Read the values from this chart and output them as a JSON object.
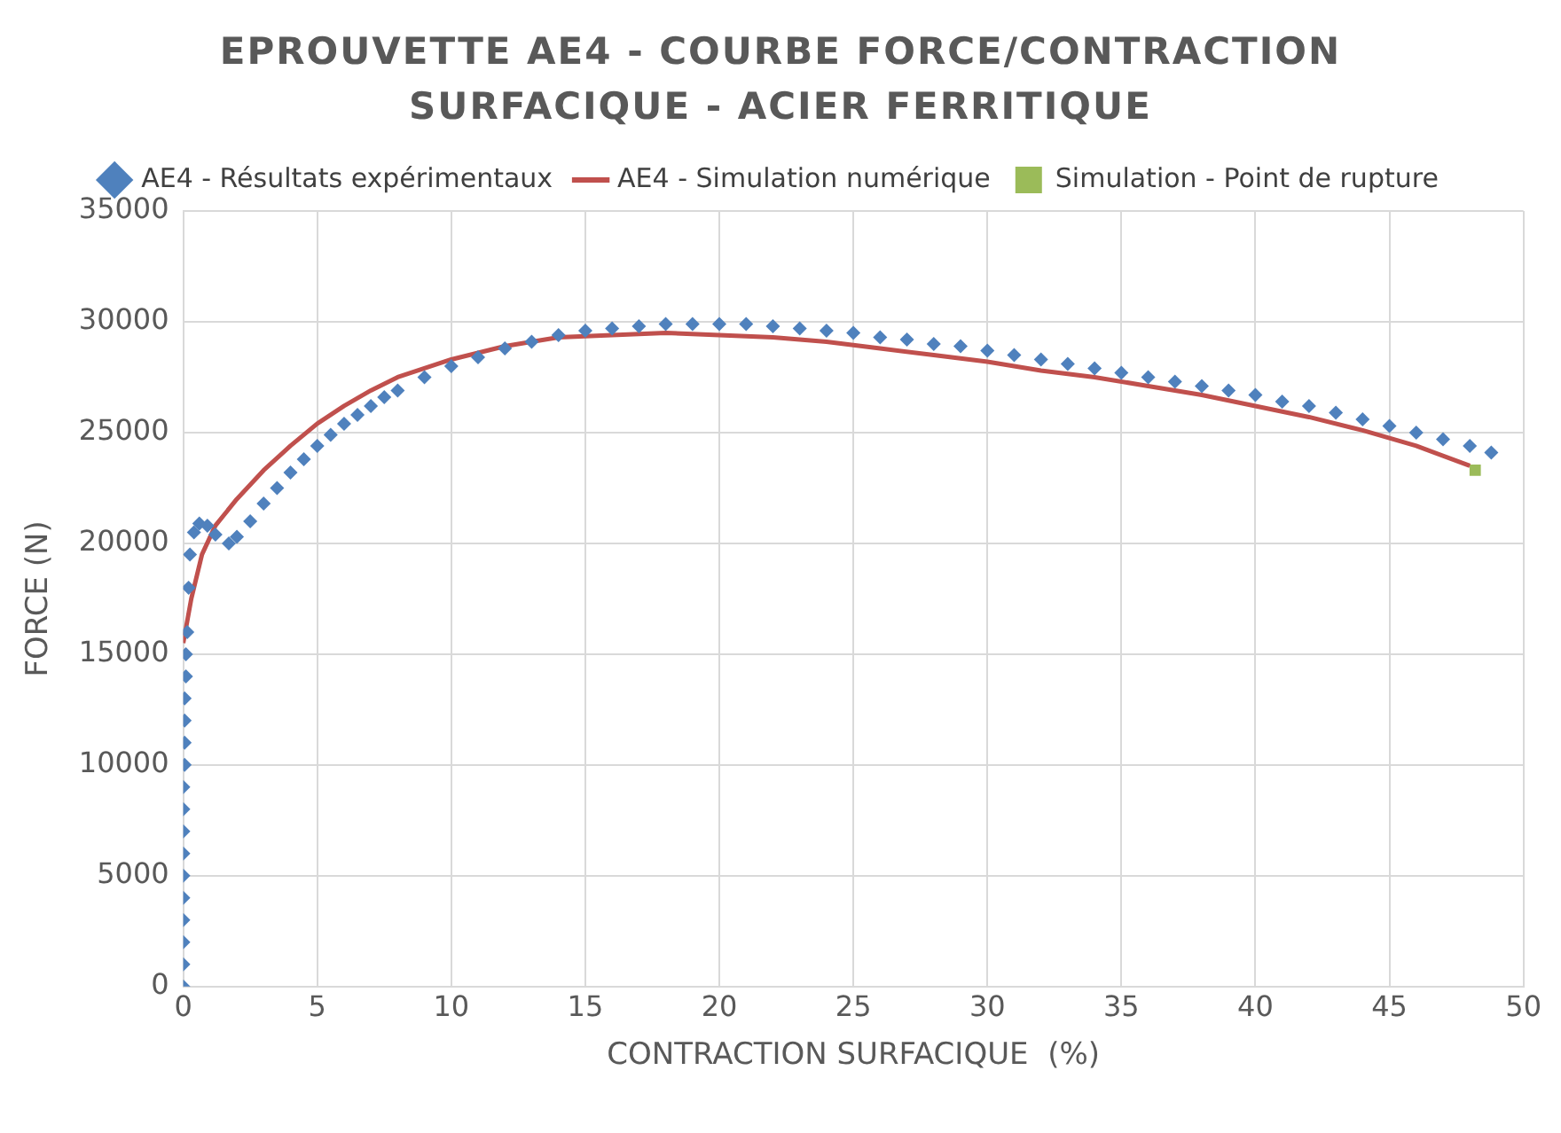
{
  "chart_data": {
    "type": "scatter",
    "title": "EPROUVETTE AE4 - COURBE FORCE/CONTRACTION SURFACIQUE - ACIER FERRITIQUE",
    "xlabel": "CONTRACTION SURFACIQUE  (%)",
    "ylabel": "FORCE (N)",
    "xlim": [
      0,
      50
    ],
    "xticks": [
      0,
      5,
      10,
      15,
      20,
      25,
      30,
      35,
      40,
      45,
      50
    ],
    "ylim": [
      0,
      35000
    ],
    "yticks": [
      0,
      5000,
      10000,
      15000,
      20000,
      25000,
      30000,
      35000
    ],
    "grid": true,
    "legend": "top",
    "series": [
      {
        "name": "AE4 - Résultats expérimentaux",
        "marker": "diamond",
        "color": "#4f81bd",
        "x": [
          0,
          0,
          0,
          0,
          0,
          0,
          0,
          0,
          0,
          0,
          0.05,
          0.05,
          0.05,
          0.05,
          0.1,
          0.1,
          0.15,
          0.2,
          0.25,
          0.4,
          0.6,
          0.9,
          1.2,
          1.7,
          2,
          2.5,
          3,
          3.5,
          4,
          4.5,
          5,
          5.5,
          6,
          6.5,
          7,
          7.5,
          8,
          9,
          10,
          11,
          12,
          13,
          14,
          15,
          16,
          17,
          18,
          19,
          20,
          21,
          22,
          23,
          24,
          25,
          26,
          27,
          28,
          29,
          30,
          31,
          32,
          33,
          34,
          35,
          36,
          37,
          38,
          39,
          40,
          41,
          42,
          43,
          44,
          45,
          46,
          47,
          48,
          48.8
        ],
        "values": [
          0,
          1000,
          2000,
          3000,
          4000,
          5000,
          6000,
          7000,
          8000,
          9000,
          10000,
          11000,
          12000,
          13000,
          14000,
          15000,
          16000,
          18000,
          19500,
          20500,
          20900,
          20800,
          20400,
          20000,
          20300,
          21000,
          21800,
          22500,
          23200,
          23800,
          24400,
          24900,
          25400,
          25800,
          26200,
          26600,
          26900,
          27500,
          28000,
          28400,
          28800,
          29100,
          29400,
          29600,
          29700,
          29800,
          29900,
          29900,
          29900,
          29900,
          29800,
          29700,
          29600,
          29500,
          29300,
          29200,
          29000,
          28900,
          28700,
          28500,
          28300,
          28100,
          27900,
          27700,
          27500,
          27300,
          27100,
          26900,
          26700,
          26400,
          26200,
          25900,
          25600,
          25300,
          25000,
          24700,
          24400,
          24100
        ]
      },
      {
        "name": "AE4 - Simulation numérique",
        "type": "line",
        "marker": "none",
        "color": "#c0504d",
        "x": [
          0,
          0.3,
          0.7,
          1.2,
          2,
          3,
          4,
          5,
          6,
          7,
          8,
          10,
          12,
          14,
          16,
          18,
          20,
          22,
          24,
          26,
          28,
          30,
          32,
          34,
          36,
          38,
          40,
          42,
          44,
          46,
          48
        ],
        "values": [
          15500,
          17500,
          19500,
          20800,
          22000,
          23300,
          24400,
          25400,
          26200,
          26900,
          27500,
          28300,
          28900,
          29300,
          29400,
          29500,
          29400,
          29300,
          29100,
          28800,
          28500,
          28200,
          27800,
          27500,
          27100,
          26700,
          26200,
          25700,
          25100,
          24400,
          23500
        ]
      },
      {
        "name": "Simulation - Point de rupture",
        "marker": "square",
        "color": "#9bbb59",
        "x": [
          48.2
        ],
        "values": [
          23300
        ]
      }
    ]
  }
}
